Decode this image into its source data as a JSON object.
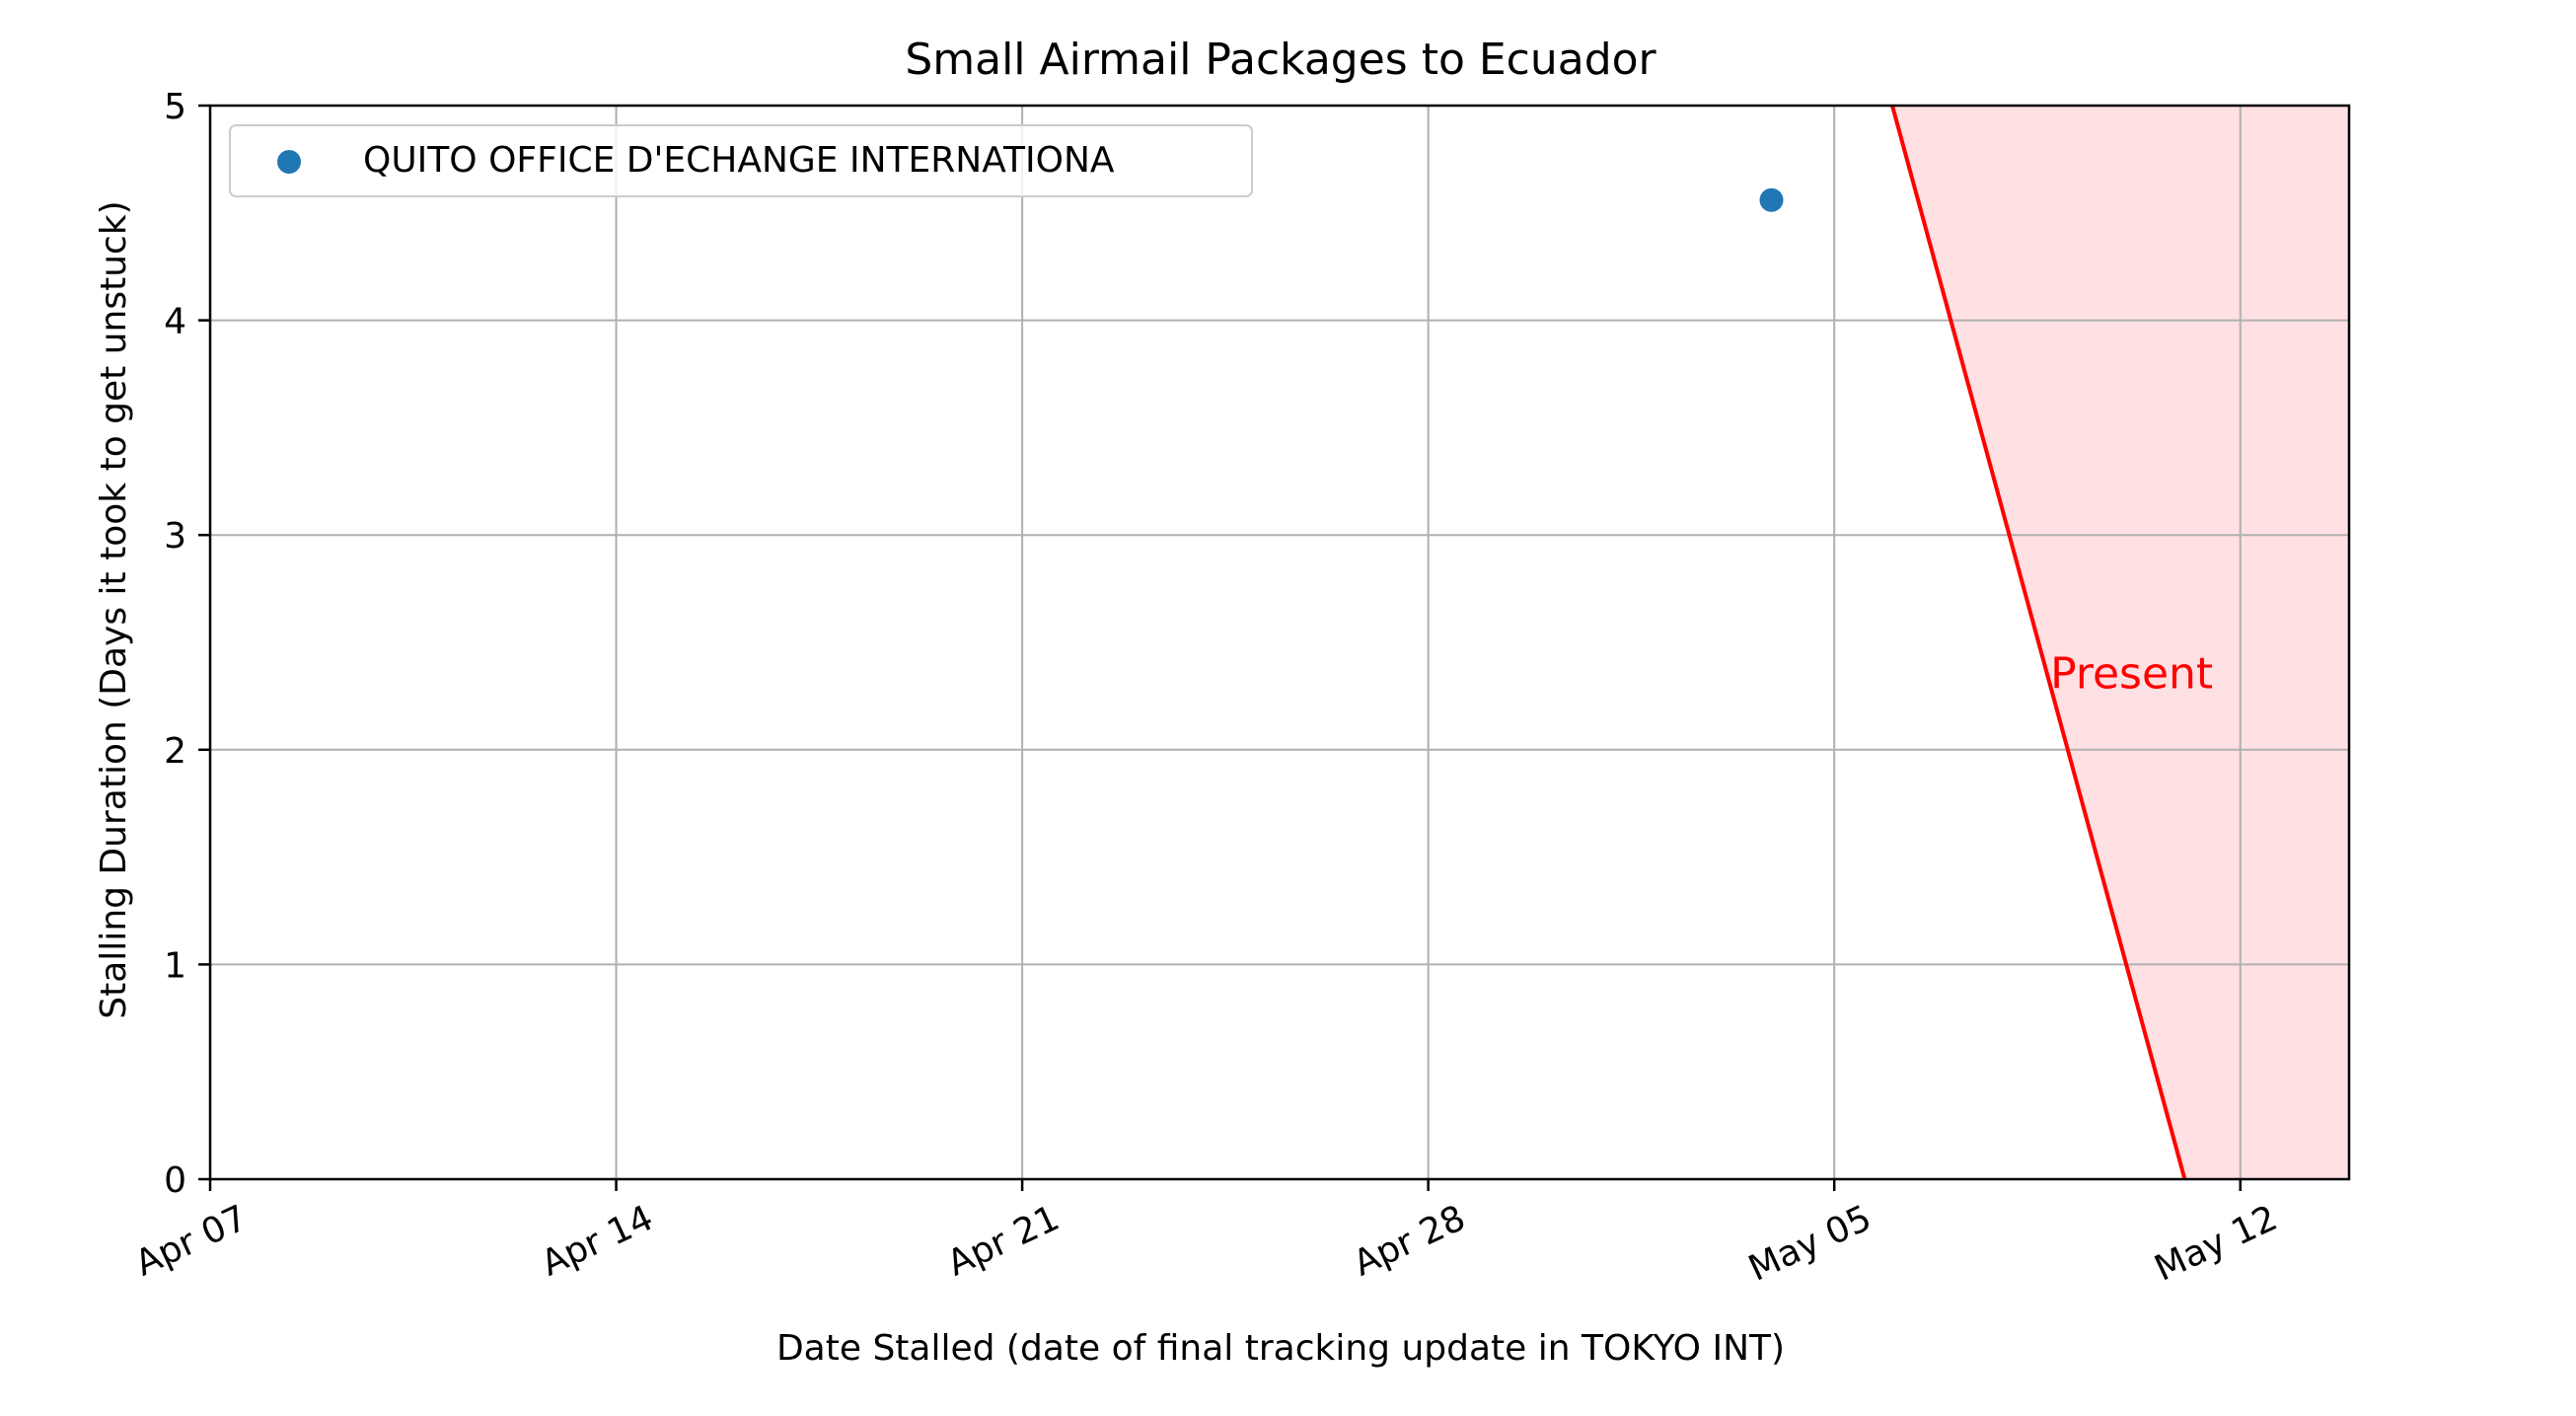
{
  "chart_data": {
    "type": "scatter",
    "title": "Small Airmail Packages to Ecuador",
    "xlabel": "Date Stalled (date of final tracking update in TOKYO INT)",
    "ylabel": "Stalling Duration (Days it took to get unstuck)",
    "x_axis": {
      "type": "date",
      "range": [
        "2024-04-07",
        "2024-05-13T21:00"
      ],
      "ticks": [
        "2024-04-07",
        "2024-04-14",
        "2024-04-21",
        "2024-04-28",
        "2024-05-05",
        "2024-05-12"
      ],
      "tick_labels": [
        "Apr 07",
        "Apr 14",
        "Apr 21",
        "Apr 28",
        "May 05",
        "May 12"
      ]
    },
    "y_axis": {
      "range": [
        0,
        5
      ],
      "ticks": [
        0,
        1,
        2,
        3,
        4,
        5
      ],
      "tick_labels": [
        "0",
        "1",
        "2",
        "3",
        "4",
        "5"
      ]
    },
    "grid": true,
    "legend": "top-left",
    "series": [
      {
        "name": "QUITO OFFICE D'ECHANGE INTERNATIONA",
        "color": "#1f77b4",
        "points": [
          {
            "x": "2024-05-03T22:00",
            "y": 4.56
          }
        ]
      }
    ],
    "present_line": {
      "label": "Present",
      "color": "#ff0000",
      "fill_color": "#ffe0e3",
      "points": [
        {
          "x": "2024-05-06T00:00",
          "y": 5
        },
        {
          "x": "2024-05-11T01:00",
          "y": 0
        }
      ]
    }
  }
}
